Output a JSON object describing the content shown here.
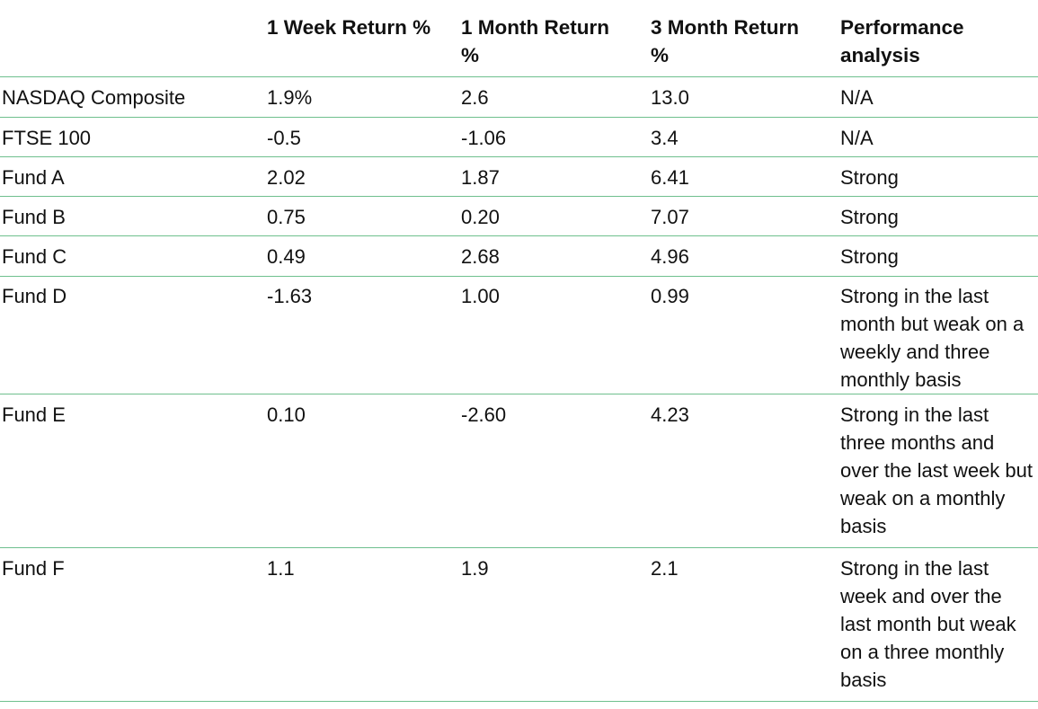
{
  "table": {
    "headers": [
      "",
      "1 Week Return %",
      "1 Month Return %",
      "3 Month Return %",
      "Performance analysis"
    ],
    "rows": [
      [
        "NASDAQ Composite",
        "1.9%",
        "2.6",
        "13.0",
        "N/A"
      ],
      [
        "FTSE 100",
        "-0.5",
        "-1.06",
        "3.4",
        "N/A"
      ],
      [
        "Fund A",
        "2.02",
        "1.87",
        "6.41",
        "Strong"
      ],
      [
        "Fund B",
        "0.75",
        "0.20",
        "7.07",
        "Strong"
      ],
      [
        "Fund C",
        "0.49",
        "2.68",
        "4.96",
        "Strong"
      ],
      [
        "Fund D",
        "-1.63",
        "1.00",
        "0.99",
        "Strong in the last month but weak on a weekly and three monthly basis"
      ],
      [
        "Fund E",
        "0.10",
        "-2.60",
        "4.23",
        "Strong in the last three months and over the last week but weak on a monthly basis"
      ],
      [
        "Fund F",
        "1.1",
        "1.9",
        "2.1",
        "Strong in the last week and over the last month but weak on a three monthly basis"
      ]
    ]
  },
  "colors": {
    "rule": "#6fc08e",
    "text": "#111111",
    "background": "#ffffff"
  }
}
